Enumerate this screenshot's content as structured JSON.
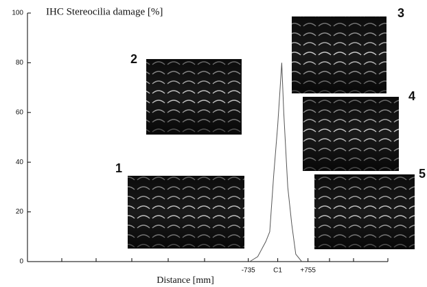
{
  "chart_data": {
    "type": "line",
    "y_label": "IHC Stereocilia damage [%]",
    "x_label": "Distance [mm]",
    "xlim": [
      -6250,
      2750
    ],
    "xticks": [
      {
        "value": -735,
        "label": "-735"
      },
      {
        "value": 0,
        "label": "C1"
      },
      {
        "value": 755,
        "label": "+755"
      }
    ],
    "ylim": [
      0,
      100
    ],
    "yticks": [
      0,
      20,
      40,
      60,
      80,
      100
    ],
    "series": [
      {
        "color": "#555555",
        "x": [
          -700,
          -500,
          -300,
          -200,
          -100,
          0,
          100,
          150,
          250,
          350,
          450,
          600
        ],
        "values": [
          0,
          2,
          8,
          12,
          35,
          55,
          80,
          60,
          30,
          15,
          3,
          0
        ]
      }
    ],
    "inset_labels": [
      "1",
      "2",
      "3",
      "4",
      "5"
    ]
  }
}
